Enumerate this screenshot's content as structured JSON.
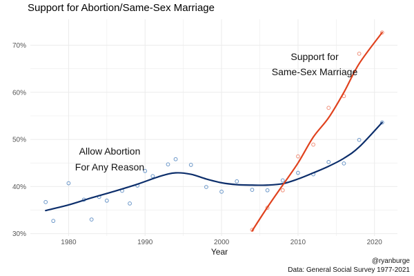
{
  "chart_data": {
    "type": "scatter",
    "title": "Support for Abortion/Same-Sex Marriage",
    "xlabel": "Year",
    "ylabel": "",
    "xlim": [
      1975,
      2023
    ],
    "ylim": [
      29.5,
      75.5
    ],
    "x_ticks": [
      1980,
      1990,
      2000,
      2010,
      2020
    ],
    "y_ticks": [
      30,
      40,
      50,
      60,
      70
    ],
    "y_tick_labels": [
      "30%",
      "40%",
      "50%",
      "60%",
      "70%"
    ],
    "grid": true,
    "series": [
      {
        "name": "Allow Abortion For Any Reason",
        "color": "#0c2e6b",
        "point_color": "#6b97c9",
        "points": [
          [
            1977,
            36.7
          ],
          [
            1978,
            32.7
          ],
          [
            1980,
            40.7
          ],
          [
            1982,
            37.2
          ],
          [
            1983,
            33.0
          ],
          [
            1984,
            37.8
          ],
          [
            1985,
            37.0
          ],
          [
            1987,
            39.1
          ],
          [
            1988,
            36.4
          ],
          [
            1989,
            40.2
          ],
          [
            1990,
            43.3
          ],
          [
            1991,
            42.2
          ],
          [
            1993,
            44.7
          ],
          [
            1994,
            45.8
          ],
          [
            1996,
            44.6
          ],
          [
            1998,
            39.9
          ],
          [
            2000,
            38.9
          ],
          [
            2002,
            41.1
          ],
          [
            2004,
            39.3
          ],
          [
            2006,
            39.2
          ],
          [
            2008,
            41.3
          ],
          [
            2010,
            42.9
          ],
          [
            2012,
            42.6
          ],
          [
            2014,
            45.2
          ],
          [
            2016,
            44.9
          ],
          [
            2018,
            49.9
          ],
          [
            2021,
            53.6
          ]
        ],
        "trend": [
          [
            1977,
            34.9
          ],
          [
            1980,
            36.1
          ],
          [
            1983,
            37.6
          ],
          [
            1986,
            39.0
          ],
          [
            1989,
            40.5
          ],
          [
            1992,
            42.2
          ],
          [
            1994,
            42.9
          ],
          [
            1996,
            42.6
          ],
          [
            1998,
            41.6
          ],
          [
            2000,
            40.8
          ],
          [
            2002,
            40.4
          ],
          [
            2004,
            40.3
          ],
          [
            2006,
            40.3
          ],
          [
            2008,
            40.6
          ],
          [
            2010,
            41.6
          ],
          [
            2012,
            42.9
          ],
          [
            2014,
            44.3
          ],
          [
            2016,
            46.0
          ],
          [
            2018,
            48.4
          ],
          [
            2021,
            53.6
          ]
        ],
        "annotation": [
          "Allow Abortion",
          "For Any Reason"
        ]
      },
      {
        "name": "Support for Same-Sex Marriage",
        "color": "#e0421e",
        "point_color": "#f0907a",
        "points": [
          [
            2004,
            30.8
          ],
          [
            2006,
            35.5
          ],
          [
            2008,
            39.2
          ],
          [
            2010,
            46.4
          ],
          [
            2012,
            48.9
          ],
          [
            2014,
            56.7
          ],
          [
            2016,
            59.2
          ],
          [
            2018,
            68.2
          ],
          [
            2021,
            72.7
          ]
        ],
        "trend": [
          [
            2004,
            30.6
          ],
          [
            2006,
            35.6
          ],
          [
            2008,
            40.3
          ],
          [
            2010,
            45.0
          ],
          [
            2012,
            50.5
          ],
          [
            2014,
            54.6
          ],
          [
            2016,
            60.0
          ],
          [
            2018,
            66.1
          ],
          [
            2021,
            72.7
          ]
        ],
        "annotation": [
          "Support for",
          "Same-Sex Marriage"
        ]
      }
    ],
    "caption": [
      "@ryanburge",
      "Data: General Social Survey 1977-2021"
    ]
  },
  "colors": {
    "background": "#ffffff",
    "grid": "#ebebeb"
  }
}
